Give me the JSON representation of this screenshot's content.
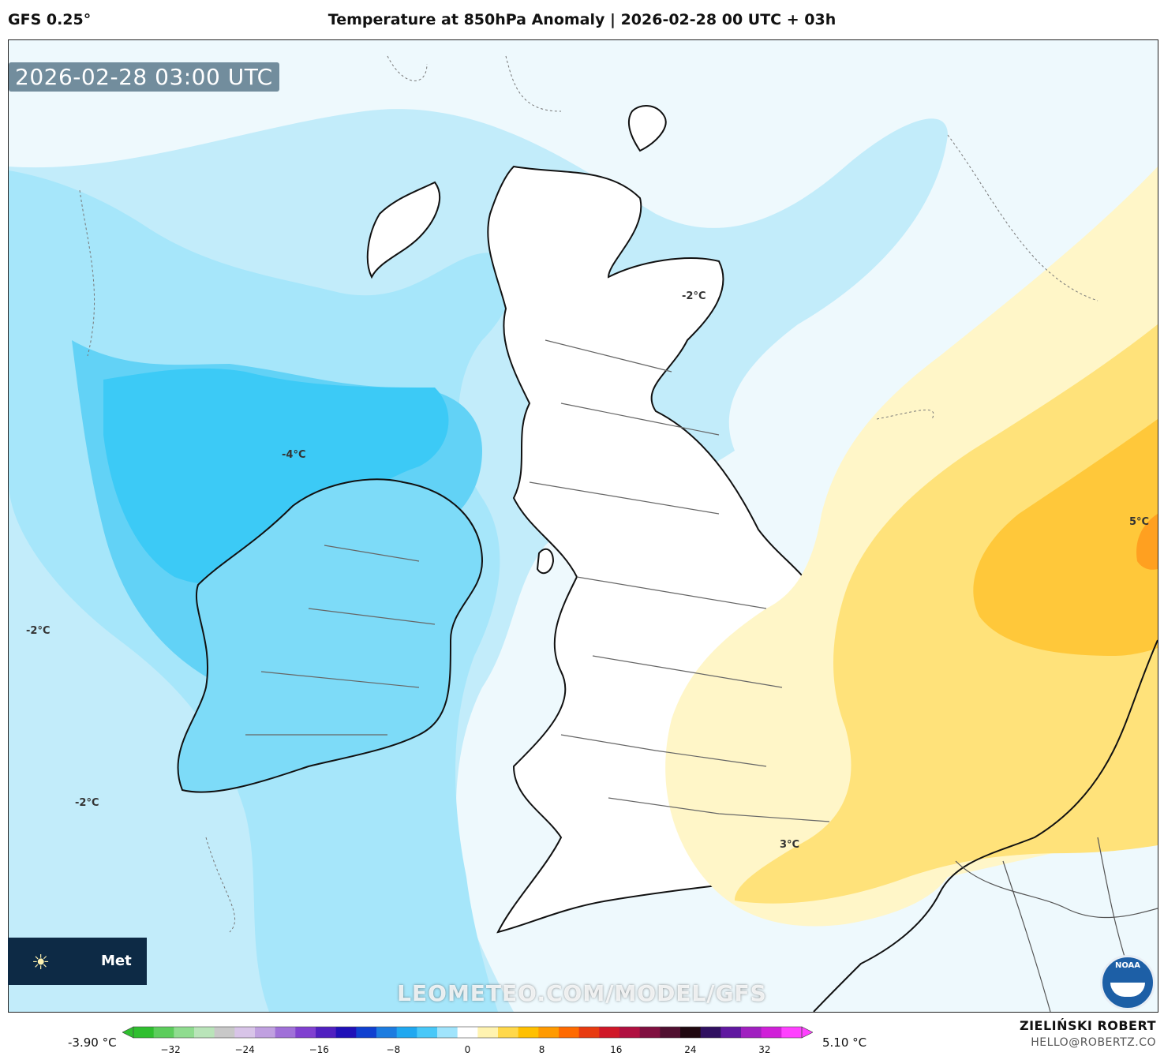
{
  "header": {
    "model": "GFS 0.25°",
    "title": "Temperature at 850hPa Anomaly | 2026-02-28 00 UTC + 03h"
  },
  "map": {
    "timestamp": "2026-02-28 03:00 UTC",
    "contour_labels": [
      "-2°C",
      "-4°C",
      "-2°C",
      "-2°C",
      "5°C",
      "3°C"
    ],
    "watermark": "LEOMETEO.COM/MODEL/GFS",
    "logo_text": "Met",
    "noaa_text": "NOAA"
  },
  "colorbar": {
    "min_label": "-3.90 °C",
    "max_label": "5.10 °C",
    "ticks": [
      "−32",
      "−24",
      "−16",
      "−8",
      "0",
      "8",
      "16",
      "24",
      "32"
    ],
    "tick_values": [
      -32,
      -24,
      -16,
      -8,
      0,
      8,
      16,
      24,
      32
    ],
    "range": [
      -36,
      36
    ],
    "colors": [
      "#2fbf2f",
      "#5ccd5c",
      "#8fdc8f",
      "#b9e4b9",
      "#c8c8c8",
      "#d8c4e8",
      "#c0a0e0",
      "#a070d8",
      "#8040d0",
      "#5020c0",
      "#2010b8",
      "#1040d0",
      "#1c7ce0",
      "#20a8f0",
      "#48c8f8",
      "#a0e4fc",
      "#ffffff",
      "#fff3b0",
      "#ffd84a",
      "#ffc000",
      "#ff9a00",
      "#ff6a00",
      "#e83a10",
      "#d01828",
      "#b01040",
      "#801040",
      "#501030",
      "#200810",
      "#301060",
      "#6018a0",
      "#a020c0",
      "#d020d8",
      "#ff40ff"
    ]
  },
  "credits": {
    "name": "ZIELIŃSKI ROBERT",
    "email": "HELLO@ROBERTZ.CO"
  }
}
